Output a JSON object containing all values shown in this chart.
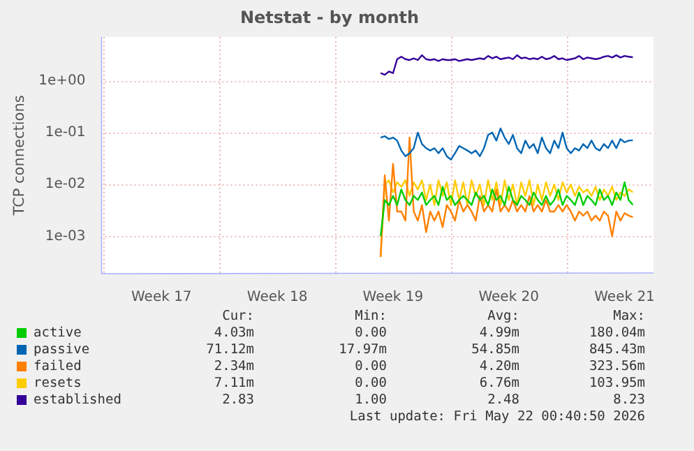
{
  "chart_data": {
    "type": "line",
    "title": "Netstat - by month",
    "ylabel": "TCP connections",
    "log": "y",
    "grid": true,
    "legend": "bottom",
    "marker": "none",
    "line_style": "solid",
    "xlim": [
      "2026-04-19T20:00",
      "2026-05-23T06:00"
    ],
    "xticks": [
      {
        "value": "2026-04-20T00:00",
        "label": null
      },
      {
        "value": "2026-04-23T12:00",
        "label": "Week 17"
      },
      {
        "value": "2026-04-27T00:00",
        "label": null
      },
      {
        "value": "2026-04-30T12:00",
        "label": "Week 18"
      },
      {
        "value": "2026-05-04T00:00",
        "label": null
      },
      {
        "value": "2026-05-07T12:00",
        "label": "Week 19"
      },
      {
        "value": "2026-05-11T00:00",
        "label": null
      },
      {
        "value": "2026-05-14T12:00",
        "label": "Week 20"
      },
      {
        "value": "2026-05-18T00:00",
        "label": null
      },
      {
        "value": "2026-05-21T12:00",
        "label": "Week 21"
      }
    ],
    "ylim": [
      0.00019,
      7
    ],
    "yticks": [
      {
        "value": 0.001,
        "label": "1e-03"
      },
      {
        "value": 0.01,
        "label": "1e-02"
      },
      {
        "value": 0.1,
        "label": "1e-01"
      },
      {
        "value": 1,
        "label": "1e+00"
      }
    ],
    "x": [
      "2026-05-06T18:00",
      "2026-05-07T00:00",
      "2026-05-07T06:00",
      "2026-05-07T12:00",
      "2026-05-07T18:00",
      "2026-05-08T00:00",
      "2026-05-08T06:00",
      "2026-05-08T12:00",
      "2026-05-08T18:00",
      "2026-05-09T00:00",
      "2026-05-09T06:00",
      "2026-05-09T12:00",
      "2026-05-09T18:00",
      "2026-05-10T00:00",
      "2026-05-10T06:00",
      "2026-05-10T12:00",
      "2026-05-10T18:00",
      "2026-05-11T00:00",
      "2026-05-11T06:00",
      "2026-05-11T12:00",
      "2026-05-11T18:00",
      "2026-05-12T00:00",
      "2026-05-12T06:00",
      "2026-05-12T12:00",
      "2026-05-12T18:00",
      "2026-05-13T00:00",
      "2026-05-13T06:00",
      "2026-05-13T12:00",
      "2026-05-13T18:00",
      "2026-05-14T00:00",
      "2026-05-14T06:00",
      "2026-05-14T12:00",
      "2026-05-14T18:00",
      "2026-05-15T00:00",
      "2026-05-15T06:00",
      "2026-05-15T12:00",
      "2026-05-15T18:00",
      "2026-05-16T00:00",
      "2026-05-16T06:00",
      "2026-05-16T12:00",
      "2026-05-16T18:00",
      "2026-05-17T00:00",
      "2026-05-17T06:00",
      "2026-05-17T12:00",
      "2026-05-17T18:00",
      "2026-05-18T00:00",
      "2026-05-18T06:00",
      "2026-05-18T12:00",
      "2026-05-18T18:00",
      "2026-05-19T00:00",
      "2026-05-19T06:00",
      "2026-05-19T12:00",
      "2026-05-19T18:00",
      "2026-05-20T00:00",
      "2026-05-20T06:00",
      "2026-05-20T12:00",
      "2026-05-20T18:00",
      "2026-05-21T00:00",
      "2026-05-21T06:00",
      "2026-05-21T12:00",
      "2026-05-21T18:00",
      "2026-05-22T00:00"
    ],
    "series": [
      {
        "name": "active",
        "color": "#00cc00",
        "values": [
          0.001,
          0.005,
          0.004,
          0.006,
          0.004,
          0.008,
          0.005,
          0.004,
          0.006,
          0.005,
          0.007,
          0.004,
          0.005,
          0.006,
          0.004,
          0.009,
          0.005,
          0.006,
          0.004,
          0.005,
          0.006,
          0.005,
          0.004,
          0.007,
          0.005,
          0.006,
          0.004,
          0.008,
          0.005,
          0.006,
          0.004,
          0.009,
          0.005,
          0.004,
          0.006,
          0.005,
          0.004,
          0.007,
          0.005,
          0.004,
          0.006,
          0.004,
          0.005,
          0.008,
          0.004,
          0.006,
          0.005,
          0.004,
          0.007,
          0.004,
          0.006,
          0.005,
          0.004,
          0.008,
          0.005,
          0.006,
          0.004,
          0.007,
          0.005,
          0.011,
          0.005,
          0.00403
        ]
      },
      {
        "name": "passive",
        "color": "#0066b3",
        "values": [
          0.08,
          0.085,
          0.075,
          0.08,
          0.07,
          0.045,
          0.035,
          0.04,
          0.05,
          0.1,
          0.06,
          0.05,
          0.045,
          0.05,
          0.04,
          0.05,
          0.035,
          0.03,
          0.04,
          0.055,
          0.05,
          0.045,
          0.04,
          0.045,
          0.035,
          0.05,
          0.09,
          0.1,
          0.07,
          0.12,
          0.08,
          0.06,
          0.09,
          0.05,
          0.04,
          0.07,
          0.05,
          0.06,
          0.04,
          0.08,
          0.05,
          0.04,
          0.07,
          0.05,
          0.1,
          0.05,
          0.04,
          0.05,
          0.045,
          0.06,
          0.05,
          0.07,
          0.05,
          0.045,
          0.06,
          0.05,
          0.07,
          0.05,
          0.075,
          0.065,
          0.07,
          0.071
        ]
      },
      {
        "name": "failed",
        "color": "#ff8000",
        "values": [
          0.0004,
          0.015,
          0.002,
          0.025,
          0.003,
          0.003,
          0.002,
          0.08,
          0.003,
          0.002,
          0.004,
          0.0012,
          0.003,
          0.002,
          0.003,
          0.0015,
          0.004,
          0.003,
          0.002,
          0.005,
          0.003,
          0.004,
          0.003,
          0.002,
          0.006,
          0.003,
          0.004,
          0.003,
          0.008,
          0.003,
          0.004,
          0.003,
          0.005,
          0.003,
          0.004,
          0.003,
          0.006,
          0.003,
          0.004,
          0.003,
          0.005,
          0.003,
          0.003,
          0.004,
          0.003,
          0.004,
          0.003,
          0.002,
          0.003,
          0.0025,
          0.003,
          0.002,
          0.0025,
          0.002,
          0.003,
          0.0025,
          0.001,
          0.003,
          0.002,
          0.0028,
          0.0025,
          0.00234
        ]
      },
      {
        "name": "resets",
        "color": "#ffcc00",
        "values": [
          0.0004,
          0.01,
          0.012,
          0.007,
          0.011,
          0.009,
          0.012,
          0.006,
          0.011,
          0.008,
          0.012,
          0.005,
          0.01,
          0.004,
          0.012,
          0.006,
          0.011,
          0.004,
          0.012,
          0.005,
          0.011,
          0.004,
          0.012,
          0.006,
          0.01,
          0.004,
          0.012,
          0.005,
          0.011,
          0.004,
          0.012,
          0.005,
          0.01,
          0.004,
          0.011,
          0.006,
          0.012,
          0.004,
          0.01,
          0.005,
          0.011,
          0.006,
          0.01,
          0.005,
          0.011,
          0.007,
          0.01,
          0.006,
          0.009,
          0.007,
          0.008,
          0.006,
          0.009,
          0.005,
          0.008,
          0.006,
          0.009,
          0.005,
          0.007,
          0.006,
          0.008,
          0.00711
        ]
      },
      {
        "name": "established",
        "color": "#330099",
        "values": [
          1.4,
          1.3,
          1.5,
          1.4,
          2.6,
          2.9,
          2.6,
          2.5,
          2.7,
          2.5,
          3.1,
          2.6,
          2.5,
          2.6,
          2.4,
          2.6,
          2.5,
          2.5,
          2.6,
          2.4,
          2.5,
          2.6,
          2.5,
          2.6,
          2.7,
          2.6,
          3.0,
          2.7,
          2.9,
          2.6,
          2.7,
          2.8,
          2.6,
          3.1,
          2.7,
          2.8,
          2.6,
          2.7,
          2.6,
          2.9,
          2.6,
          2.7,
          3.0,
          2.6,
          2.7,
          2.5,
          2.6,
          2.7,
          3.0,
          2.6,
          2.8,
          2.7,
          2.6,
          2.7,
          2.9,
          3.0,
          2.8,
          3.1,
          2.8,
          3.0,
          2.9,
          2.83
        ]
      }
    ],
    "annotations": [
      "Cur:",
      "Min:",
      "Avg:",
      "Max:",
      "4.03m",
      "0.00",
      "4.99m",
      "180.04m",
      "71.12m",
      "17.97m",
      "54.85m",
      "845.43m",
      "2.34m",
      "0.00",
      "4.20m",
      "323.56m",
      "7.11m",
      "0.00",
      "6.76m",
      "103.95m",
      "2.83",
      "1.00",
      "2.48",
      "8.23",
      "Last update: Fri May 22 00:40:50 2026"
    ]
  }
}
